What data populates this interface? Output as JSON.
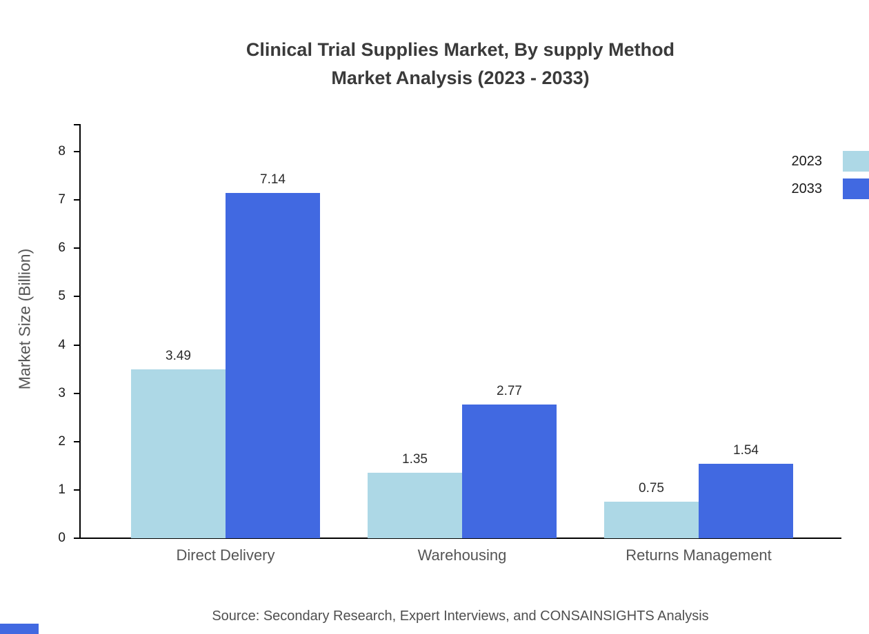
{
  "title": {
    "line1": "Clinical Trial Supplies Market, By supply Method",
    "line2": "Market Analysis (2023 - 2033)"
  },
  "chart_data": {
    "type": "bar",
    "categories": [
      "Direct Delivery",
      "Warehousing",
      "Returns Management"
    ],
    "series": [
      {
        "name": "2023",
        "color": "#ADD8E6",
        "values": [
          3.49,
          1.35,
          0.75
        ]
      },
      {
        "name": "2033",
        "color": "#4169E1",
        "values": [
          7.14,
          2.77,
          1.54
        ]
      }
    ],
    "title": "Clinical Trial Supplies Market, By supply Method Market Analysis (2023 - 2033)",
    "xlabel": "",
    "ylabel": "Market Size (Billion)",
    "ylim": [
      0,
      8
    ],
    "yticks": [
      0,
      1,
      2,
      3,
      4,
      5,
      6,
      7,
      8
    ],
    "grid": false,
    "legend_position": "top-right",
    "value_labels": true
  },
  "source": "Source: Secondary Research, Expert Interviews, and CONSAINSIGHTS Analysis",
  "colors": {
    "series_2023": "#ADD8E6",
    "series_2033": "#4169E1",
    "axis": "#000000",
    "title_text": "#3a3a3a",
    "muted_text": "#555555"
  }
}
